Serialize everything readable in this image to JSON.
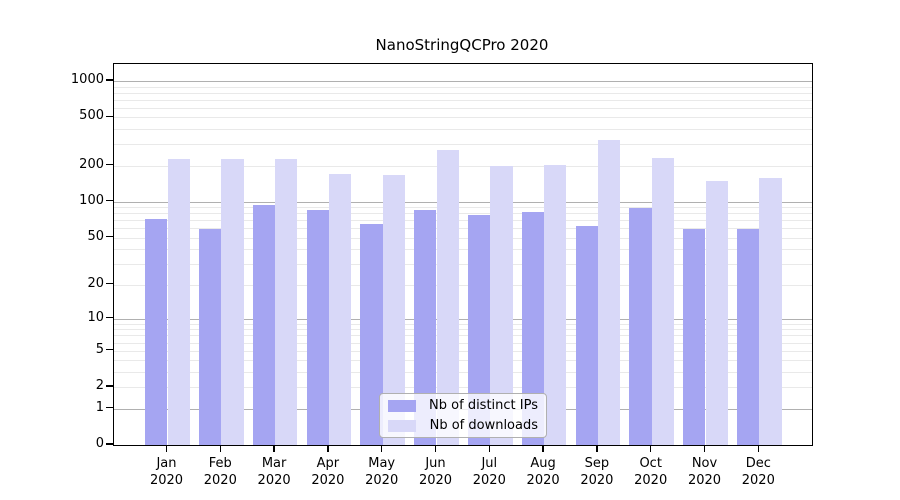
{
  "title": "NanoStringQCPro 2020",
  "chart_data": {
    "type": "bar",
    "title": "NanoStringQCPro 2020",
    "scale": "log1p",
    "categories": [
      {
        "month": "Jan",
        "year": "2020"
      },
      {
        "month": "Feb",
        "year": "2020"
      },
      {
        "month": "Mar",
        "year": "2020"
      },
      {
        "month": "Apr",
        "year": "2020"
      },
      {
        "month": "May",
        "year": "2020"
      },
      {
        "month": "Jun",
        "year": "2020"
      },
      {
        "month": "Jul",
        "year": "2020"
      },
      {
        "month": "Aug",
        "year": "2020"
      },
      {
        "month": "Sep",
        "year": "2020"
      },
      {
        "month": "Oct",
        "year": "2020"
      },
      {
        "month": "Nov",
        "year": "2020"
      },
      {
        "month": "Dec",
        "year": "2020"
      }
    ],
    "series": [
      {
        "name": "Nb of distinct IPs",
        "color": "#a5a5f2",
        "values": [
          72,
          59,
          95,
          85,
          65,
          86,
          78,
          83,
          63,
          89,
          59,
          59
        ]
      },
      {
        "name": "Nb of downloads",
        "color": "#d8d8f8",
        "values": [
          228,
          228,
          227,
          170,
          167,
          268,
          199,
          201,
          326,
          229,
          149,
          158
        ]
      }
    ],
    "yticks": [
      0,
      1,
      2,
      5,
      10,
      20,
      50,
      100,
      200,
      500,
      1000
    ],
    "ylim": [
      0,
      1390
    ],
    "xlabel": "",
    "ylabel": "",
    "grid": true,
    "grid_major_color": "#b0b0b0",
    "grid_minor_color": "#e9e9e9",
    "frame_color": "#000000",
    "legend_position": "bottom-center"
  }
}
